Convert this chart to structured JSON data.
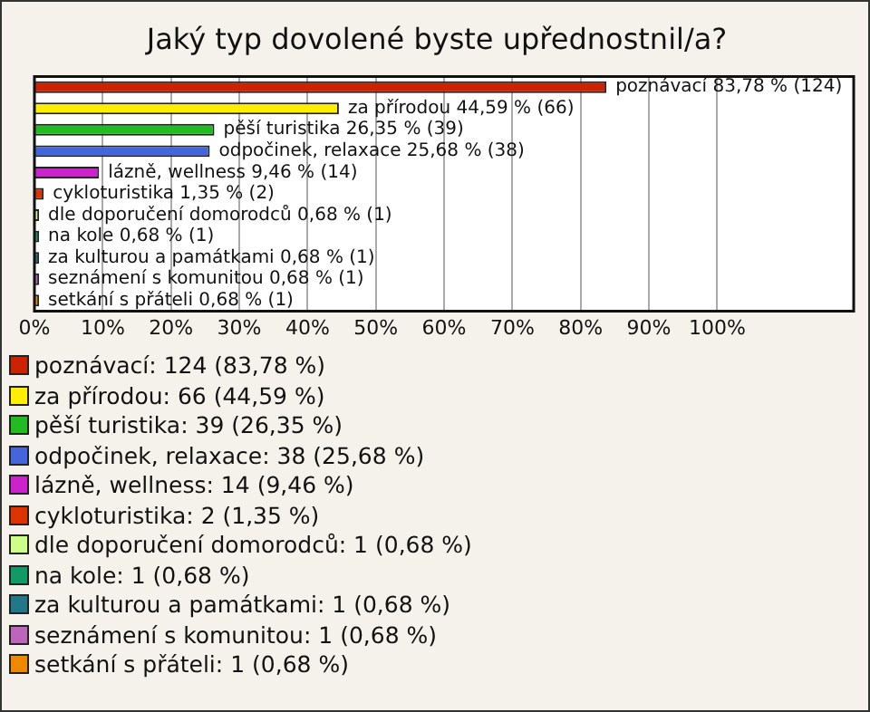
{
  "chart_data": {
    "type": "bar",
    "orientation": "horizontal",
    "title": "Jaký typ dovolené byste upřednostnil/a?",
    "categories": [
      null,
      null,
      null,
      null,
      null,
      null,
      null,
      null,
      null,
      null,
      null
    ],
    "values": [
      83.78,
      44.59,
      26.35,
      25.68,
      9.46,
      1.35,
      0.68,
      0.68,
      0.68,
      0.68,
      0.68
    ],
    "colors": [
      "#cc2200",
      "#ffee00",
      "#22bb22",
      "#4466dd",
      "#cc22cc",
      "#dd3300",
      "#ccff88",
      "#119966",
      "#227788",
      "#bb66bb",
      "#ee8800"
    ],
    "value_labels": [
      "poznávací 83,78 % (124)",
      "za přírodou 44,59 % (66)",
      "pěší turistika 26,35 % (39)",
      "odpočinek, relaxace 25,68 % (38)",
      "lázně, wellness 9,46 % (14)",
      "cykloturistika 1,35 % (2)",
      "dle doporučení domorodců 0,68 % (1)",
      "na kole 0,68 % (1)",
      "za kulturou a památkami 0,68 % (1)",
      "seznámení s komunitou 0,68 % (1)",
      "setkání s přáteli 0,68 % (1)"
    ],
    "annotations": [
      "poznávací: 124 (83,78 %)",
      "za přírodou: 66 (44,59 %)",
      "pěší turistika: 39 (26,35 %)",
      "odpočinek, relaxace: 38 (25,68 %)",
      "lázně, wellness: 14 (9,46 %)",
      "cykloturistika: 2 (1,35 %)",
      "dle doporučení domorodců: 1 (0,68 %)",
      "na kole: 1 (0,68 %)",
      "za kulturou a památkami: 1 (0,68 %)",
      "seznámení s komunitou: 1 (0,68 %)",
      "setkání s přáteli: 1 (0,68 %)"
    ],
    "xlim": [
      0,
      120
    ],
    "xticks": [
      {
        "value": 0,
        "label": "0%"
      },
      {
        "value": 10,
        "label": "10%"
      },
      {
        "value": 20,
        "label": "20%"
      },
      {
        "value": 30,
        "label": "30%"
      },
      {
        "value": 40,
        "label": "40%"
      },
      {
        "value": 50,
        "label": "50%"
      },
      {
        "value": 60,
        "label": "60%"
      },
      {
        "value": 70,
        "label": "70%"
      },
      {
        "value": 80,
        "label": "80%"
      },
      {
        "value": 90,
        "label": "90%"
      },
      {
        "value": 100,
        "label": "100%"
      }
    ],
    "grid": "x",
    "tick_labels": "x"
  }
}
